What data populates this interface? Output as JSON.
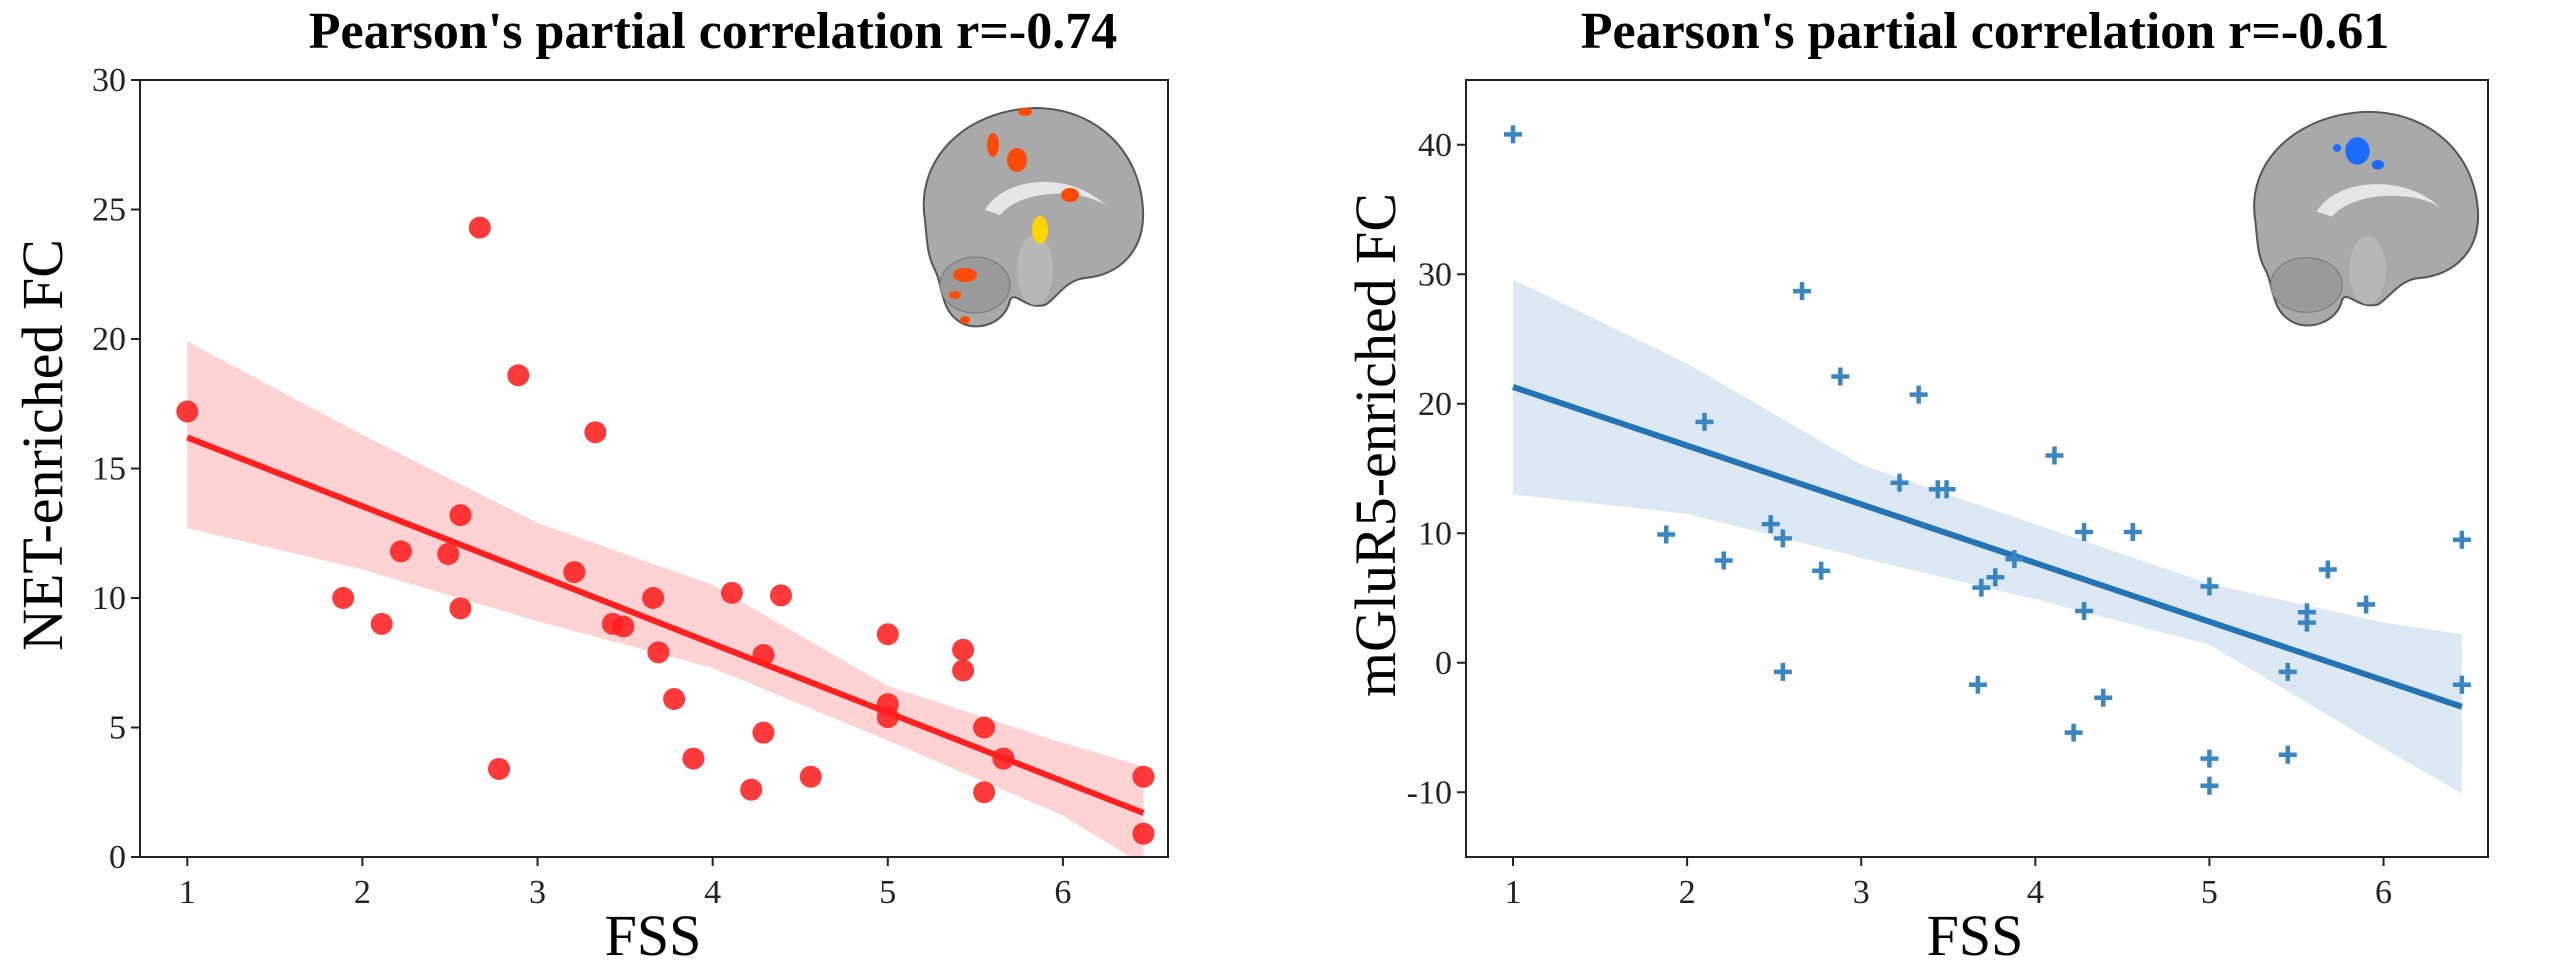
{
  "chart_data": [
    {
      "type": "scatter",
      "title": "Pearson's partial correlation r=-0.74",
      "xlabel": "FSS",
      "ylabel": "NET-enriched FC",
      "xlim": [
        0.73,
        6.6
      ],
      "ylim": [
        0,
        30
      ],
      "xticks": [
        1,
        2,
        3,
        4,
        5,
        6
      ],
      "yticks": [
        0,
        5,
        10,
        15,
        20,
        25,
        30
      ],
      "grid": false,
      "marker": "circle",
      "color": "#ff1f1f",
      "band_color": "#ffd3d3",
      "inset": "brain-sagittal-red-activation",
      "points": [
        [
          1.0,
          17.2
        ],
        [
          2.67,
          24.3
        ],
        [
          2.89,
          18.6
        ],
        [
          3.33,
          16.4
        ],
        [
          2.56,
          13.2
        ],
        [
          2.22,
          11.8
        ],
        [
          2.49,
          11.7
        ],
        [
          3.21,
          11.0
        ],
        [
          1.89,
          10.0
        ],
        [
          2.11,
          9.0
        ],
        [
          2.56,
          9.6
        ],
        [
          2.78,
          3.4
        ],
        [
          3.66,
          10.0
        ],
        [
          3.43,
          9.0
        ],
        [
          3.49,
          8.9
        ],
        [
          3.69,
          7.9
        ],
        [
          4.11,
          10.2
        ],
        [
          4.39,
          10.1
        ],
        [
          4.29,
          7.8
        ],
        [
          3.78,
          6.1
        ],
        [
          4.29,
          4.8
        ],
        [
          3.89,
          3.8
        ],
        [
          4.22,
          2.6
        ],
        [
          4.56,
          3.1
        ],
        [
          5.0,
          8.6
        ],
        [
          5.0,
          5.9
        ],
        [
          5.0,
          5.4
        ],
        [
          5.43,
          8.0
        ],
        [
          5.43,
          7.2
        ],
        [
          5.55,
          5.0
        ],
        [
          5.66,
          3.8
        ],
        [
          5.55,
          2.5
        ],
        [
          6.46,
          3.1
        ],
        [
          6.46,
          0.9
        ]
      ],
      "regression": {
        "x": [
          1,
          6.46
        ],
        "y": [
          16.2,
          1.7
        ]
      },
      "confidence_band": {
        "x": [
          1,
          2,
          3,
          4,
          5,
          6,
          6.46
        ],
        "upper": [
          19.9,
          16.3,
          12.9,
          10.5,
          6.6,
          4.4,
          3.5
        ],
        "lower": [
          12.7,
          11.1,
          9.1,
          7.3,
          4.5,
          1.6,
          -0.3
        ]
      }
    },
    {
      "type": "scatter",
      "title": "Pearson's partial correlation r=-0.61",
      "xlabel": "FSS",
      "ylabel": "mGluR5-enriched FC",
      "xlim": [
        0.73,
        6.6
      ],
      "ylim": [
        -15,
        45
      ],
      "xticks": [
        1,
        2,
        3,
        4,
        5,
        6
      ],
      "yticks": [
        -10,
        0,
        10,
        20,
        30,
        40
      ],
      "grid": false,
      "marker": "plus",
      "color": "#3a86c2",
      "line_color": "#2474b5",
      "band_color": "#dce8f3",
      "inset": "brain-sagittal-blue-activation",
      "points": [
        [
          1.0,
          40.8
        ],
        [
          2.66,
          28.7
        ],
        [
          2.88,
          22.1
        ],
        [
          2.1,
          18.6
        ],
        [
          1.88,
          9.9
        ],
        [
          2.21,
          7.9
        ],
        [
          2.48,
          10.7
        ],
        [
          2.55,
          9.6
        ],
        [
          2.77,
          7.1
        ],
        [
          2.55,
          -0.7
        ],
        [
          3.22,
          13.9
        ],
        [
          3.33,
          20.7
        ],
        [
          3.44,
          13.4
        ],
        [
          3.49,
          13.4
        ],
        [
          4.11,
          16.0
        ],
        [
          4.28,
          10.1
        ],
        [
          4.56,
          10.1
        ],
        [
          3.88,
          8.0
        ],
        [
          3.77,
          6.6
        ],
        [
          3.69,
          5.8
        ],
        [
          4.28,
          4.0
        ],
        [
          5.0,
          5.9
        ],
        [
          5.68,
          7.2
        ],
        [
          5.9,
          4.5
        ],
        [
          5.56,
          3.9
        ],
        [
          5.56,
          3.1
        ],
        [
          5.45,
          -0.7
        ],
        [
          3.67,
          -1.7
        ],
        [
          4.39,
          -2.7
        ],
        [
          4.22,
          -5.4
        ],
        [
          5.0,
          -7.4
        ],
        [
          5.0,
          -9.5
        ],
        [
          5.45,
          -7.1
        ],
        [
          6.45,
          9.5
        ],
        [
          6.45,
          -1.7
        ]
      ],
      "regression": {
        "x": [
          1,
          6.45
        ],
        "y": [
          21.3,
          -3.4
        ]
      },
      "confidence_band": {
        "x": [
          1,
          2,
          3,
          4,
          5,
          6,
          6.45
        ],
        "upper": [
          29.6,
          23.1,
          15.3,
          10.7,
          6.1,
          3.1,
          2.2
        ],
        "lower": [
          13.0,
          11.5,
          8.1,
          4.9,
          1.4,
          -6.6,
          -10.1
        ]
      }
    }
  ]
}
